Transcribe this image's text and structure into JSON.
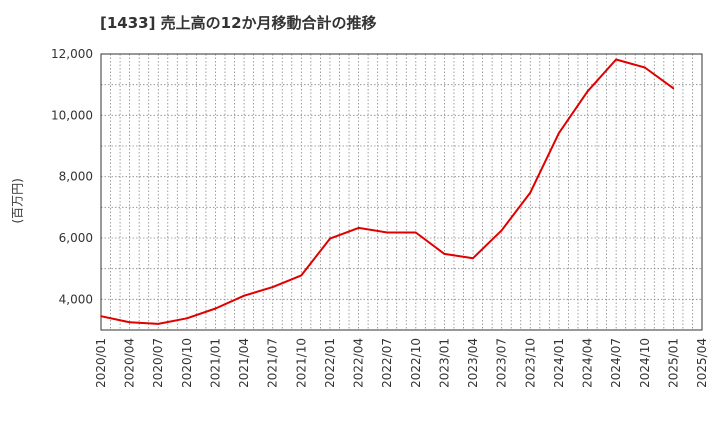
{
  "chart_data": {
    "type": "line",
    "title": "[1433]  売上高の12か月移動合計の推移",
    "ylabel": "(百万円)",
    "xlabel": "",
    "ylim": [
      3000,
      12000
    ],
    "y_ticks": [
      4000,
      6000,
      8000,
      10000,
      12000
    ],
    "y_tick_labels": [
      "4,000",
      "6,000",
      "8,000",
      "10,000",
      "12,000"
    ],
    "x_tick_labels": [
      "2020/01",
      "2020/04",
      "2020/07",
      "2020/10",
      "2021/01",
      "2021/04",
      "2021/07",
      "2021/10",
      "2022/01",
      "2022/04",
      "2022/07",
      "2022/10",
      "2023/01",
      "2023/04",
      "2023/07",
      "2023/10",
      "2024/01",
      "2024/04",
      "2024/07",
      "2024/10",
      "2025/01",
      "2025/04"
    ],
    "grid": true,
    "series": [
      {
        "name": "売上高",
        "color": "#e00000",
        "values": [
          3450,
          3250,
          3200,
          3380,
          3700,
          4120,
          4400,
          4780,
          5980,
          6330,
          6180,
          6180,
          5480,
          5340,
          6250,
          7480,
          9420,
          10780,
          11820,
          11560,
          10880
        ]
      }
    ]
  }
}
